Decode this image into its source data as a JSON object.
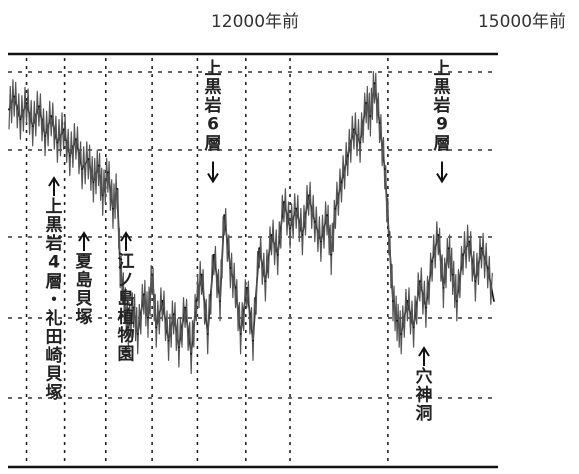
{
  "chart_data": {
    "type": "line",
    "title": "",
    "xlabel": "",
    "ylabel": "",
    "x_ticks": [
      {
        "label": "12000年前",
        "x": 12000
      },
      {
        "label": "15000年前",
        "x": 15000
      }
    ],
    "xlim": [
      10640,
      15400
    ],
    "ylim": [
      0,
      100
    ],
    "grid": true,
    "series": [
      {
        "values": [
          [
            10650,
            88
          ],
          [
            10700,
            92
          ],
          [
            10760,
            85
          ],
          [
            10820,
            90
          ],
          [
            10880,
            83
          ],
          [
            10940,
            89
          ],
          [
            11000,
            80
          ],
          [
            11060,
            86
          ],
          [
            11120,
            78
          ],
          [
            11180,
            82
          ],
          [
            11240,
            74
          ],
          [
            11300,
            79
          ],
          [
            11360,
            70
          ],
          [
            11420,
            73
          ],
          [
            11470,
            66
          ],
          [
            11520,
            71
          ],
          [
            11560,
            62
          ],
          [
            11610,
            69
          ],
          [
            11660,
            58
          ],
          [
            11700,
            64
          ],
          [
            11730,
            40
          ],
          [
            11770,
            30
          ],
          [
            11810,
            22
          ],
          [
            11860,
            28
          ],
          [
            11900,
            20
          ],
          [
            11960,
            32
          ],
          [
            12000,
            25
          ],
          [
            12040,
            38
          ],
          [
            12080,
            22
          ],
          [
            12140,
            30
          ],
          [
            12200,
            18
          ],
          [
            12250,
            26
          ],
          [
            12300,
            16
          ],
          [
            12360,
            28
          ],
          [
            12420,
            14
          ],
          [
            12470,
            30
          ],
          [
            12520,
            38
          ],
          [
            12580,
            20
          ],
          [
            12640,
            44
          ],
          [
            12700,
            30
          ],
          [
            12740,
            56
          ],
          [
            12800,
            40
          ],
          [
            12850,
            34
          ],
          [
            12900,
            20
          ],
          [
            12960,
            34
          ],
          [
            13020,
            18
          ],
          [
            13080,
            46
          ],
          [
            13140,
            36
          ],
          [
            13200,
            50
          ],
          [
            13260,
            44
          ],
          [
            13320,
            60
          ],
          [
            13380,
            52
          ],
          [
            13440,
            58
          ],
          [
            13500,
            50
          ],
          [
            13560,
            62
          ],
          [
            13620,
            54
          ],
          [
            13680,
            48
          ],
          [
            13740,
            56
          ],
          [
            13780,
            44
          ],
          [
            13820,
            58
          ],
          [
            13880,
            66
          ],
          [
            13940,
            74
          ],
          [
            14000,
            82
          ],
          [
            14060,
            78
          ],
          [
            14120,
            90
          ],
          [
            14160,
            86
          ],
          [
            14200,
            96
          ],
          [
            14250,
            84
          ],
          [
            14300,
            70
          ],
          [
            14340,
            50
          ],
          [
            14380,
            30
          ],
          [
            14420,
            24
          ],
          [
            14460,
            20
          ],
          [
            14520,
            30
          ],
          [
            14580,
            22
          ],
          [
            14640,
            36
          ],
          [
            14700,
            28
          ],
          [
            14760,
            42
          ],
          [
            14820,
            50
          ],
          [
            14870,
            34
          ],
          [
            14920,
            46
          ],
          [
            14960,
            38
          ],
          [
            15000,
            30
          ],
          [
            15060,
            44
          ],
          [
            15120,
            48
          ],
          [
            15180,
            36
          ],
          [
            15240,
            46
          ],
          [
            15300,
            40
          ],
          [
            15360,
            30
          ]
        ]
      }
    ],
    "annotations": [
      {
        "text": "上黒岩6層",
        "x": 12000,
        "direction": "down"
      },
      {
        "text": "上黒岩9層",
        "x": 14200,
        "direction": "down"
      },
      {
        "text": "上黒岩4層・礼田崎貝塚",
        "x": 10810,
        "direction": "up"
      },
      {
        "text": "夏島貝塚",
        "x": 11090,
        "direction": "up"
      },
      {
        "text": "江ノ島植物園",
        "x": 11580,
        "direction": "up"
      },
      {
        "text": "穴神洞",
        "x": 14290,
        "direction": "up"
      }
    ]
  }
}
